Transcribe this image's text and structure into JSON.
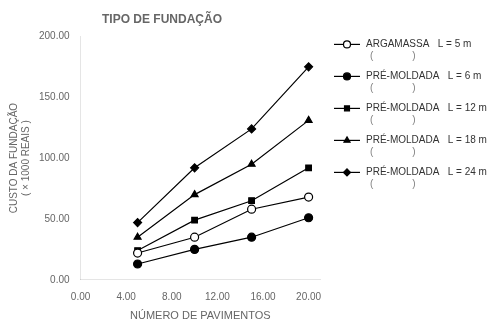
{
  "chart_data": {
    "type": "line",
    "title": "TIPO DE FUNDAÇÃO",
    "xlabel": "NÚMERO DE PAVIMENTOS",
    "ylabel": [
      "CUSTO DA FUNDAÇÃO",
      "( × 1000 REAIS )"
    ],
    "xlim": [
      0,
      21
    ],
    "ylim": [
      0,
      200
    ],
    "xticks": [
      {
        "value": 0,
        "label": "0.00"
      },
      {
        "value": 4,
        "label": "4.00"
      },
      {
        "value": 8,
        "label": "8.00"
      },
      {
        "value": 12,
        "label": "12.00"
      },
      {
        "value": 16,
        "label": "16.00"
      },
      {
        "value": 20,
        "label": "20.00"
      }
    ],
    "yticks": [
      {
        "value": 0,
        "label": "0.00"
      },
      {
        "value": 50,
        "label": "50.00"
      },
      {
        "value": 100,
        "label": "100.00"
      },
      {
        "value": 150,
        "label": "150.00"
      },
      {
        "value": 200,
        "label": "200.00"
      }
    ],
    "grid": false,
    "legend": "right",
    "x": [
      5,
      10,
      15,
      20
    ],
    "annotations": [
      "(              )",
      "(              )",
      "(              )",
      "(              )",
      "(              )"
    ],
    "series": [
      {
        "name": "ARGAMASSA   L = 5 m",
        "color": "black",
        "marker": "circle_open",
        "values": [
          22,
          35,
          58,
          68
        ]
      },
      {
        "name": "PRÉ-MOLDADA   L = 6 m",
        "color": "black",
        "marker": "circle",
        "values": [
          13,
          25,
          35,
          51
        ]
      },
      {
        "name": "PRÉ-MOLDADA   L = 12 m",
        "color": "black",
        "marker": "square",
        "values": [
          24,
          49,
          65,
          92
        ]
      },
      {
        "name": "PRÉ-MOLDADA   L = 18 m",
        "color": "black",
        "marker": "triangle",
        "values": [
          35,
          70,
          95,
          131
        ]
      },
      {
        "name": "PRÉ-MOLDADA   L = 24 m",
        "color": "black",
        "marker": "diamond",
        "values": [
          47,
          92,
          124,
          175
        ]
      }
    ]
  }
}
